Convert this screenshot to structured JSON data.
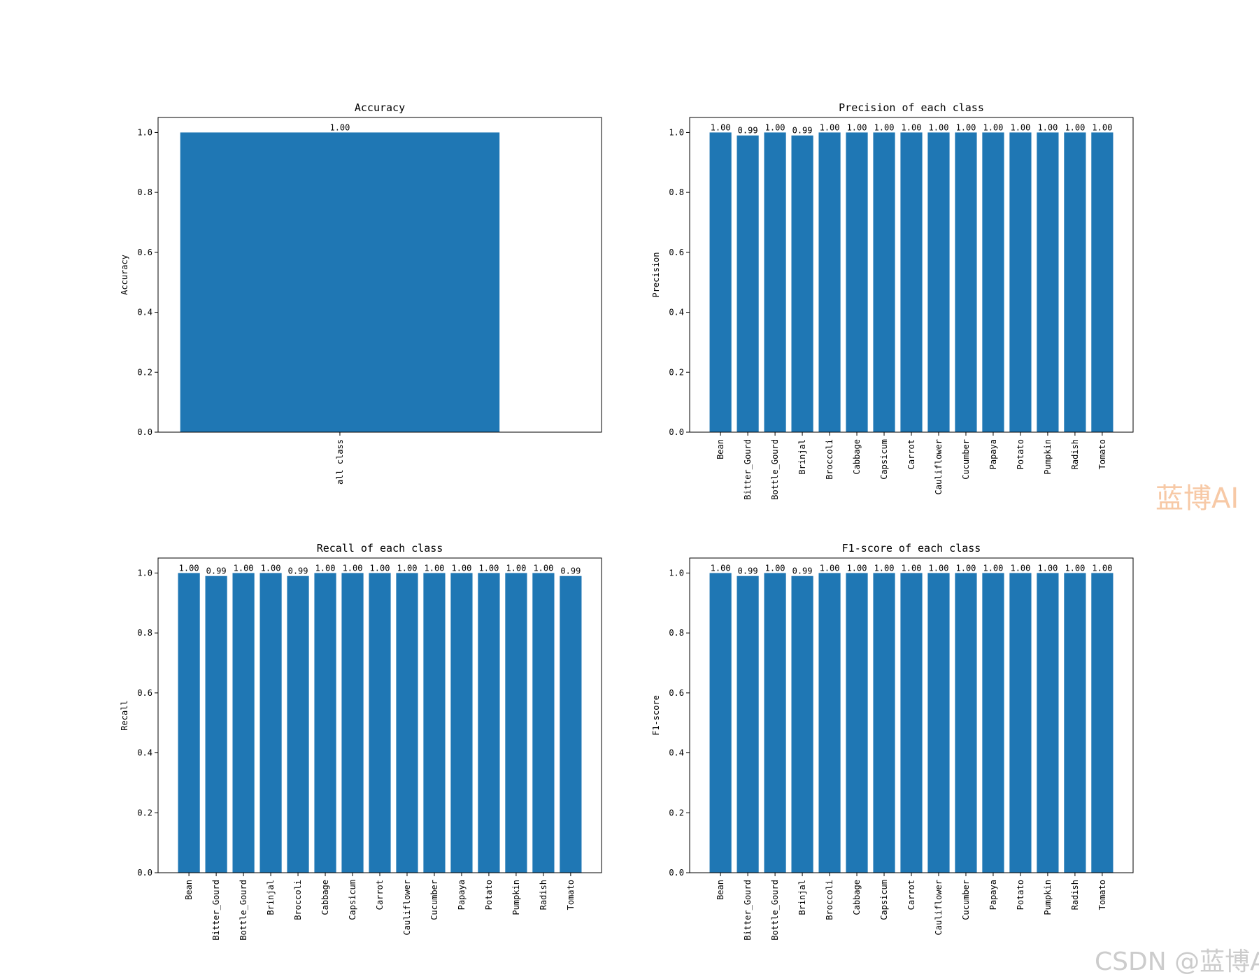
{
  "chart_data": [
    {
      "type": "bar",
      "title": "Accuracy",
      "xlabel": "",
      "ylabel": "Accuracy",
      "ylim": [
        0,
        1.05
      ],
      "yticks": [
        "0.0",
        "0.2",
        "0.4",
        "0.6",
        "0.8",
        "1.0"
      ],
      "categories": [
        "all class"
      ],
      "values": [
        1.0
      ],
      "data_labels": [
        "1.00"
      ],
      "color": "#1f77b4",
      "grid": false
    },
    {
      "type": "bar",
      "title": "Precision of each class",
      "xlabel": "",
      "ylabel": "Precision",
      "ylim": [
        0,
        1.05
      ],
      "yticks": [
        "0.0",
        "0.2",
        "0.4",
        "0.6",
        "0.8",
        "1.0"
      ],
      "categories": [
        "Bean",
        "Bitter_Gourd",
        "Bottle_Gourd",
        "Brinjal",
        "Broccoli",
        "Cabbage",
        "Capsicum",
        "Carrot",
        "Cauliflower",
        "Cucumber",
        "Papaya",
        "Potato",
        "Pumpkin",
        "Radish",
        "Tomato"
      ],
      "values": [
        1.0,
        0.99,
        1.0,
        0.99,
        1.0,
        1.0,
        1.0,
        1.0,
        1.0,
        1.0,
        1.0,
        1.0,
        1.0,
        1.0,
        1.0
      ],
      "data_labels": [
        "1.00",
        "0.99",
        "1.00",
        "0.99",
        "1.00",
        "1.00",
        "1.00",
        "1.00",
        "1.00",
        "1.00",
        "1.00",
        "1.00",
        "1.00",
        "1.00",
        "1.00"
      ],
      "color": "#1f77b4",
      "grid": false
    },
    {
      "type": "bar",
      "title": "Recall of each class",
      "xlabel": "",
      "ylabel": "Recall",
      "ylim": [
        0,
        1.05
      ],
      "yticks": [
        "0.0",
        "0.2",
        "0.4",
        "0.6",
        "0.8",
        "1.0"
      ],
      "categories": [
        "Bean",
        "Bitter_Gourd",
        "Bottle_Gourd",
        "Brinjal",
        "Broccoli",
        "Cabbage",
        "Capsicum",
        "Carrot",
        "Cauliflower",
        "Cucumber",
        "Papaya",
        "Potato",
        "Pumpkin",
        "Radish",
        "Tomato"
      ],
      "values": [
        1.0,
        0.99,
        1.0,
        1.0,
        0.99,
        1.0,
        1.0,
        1.0,
        1.0,
        1.0,
        1.0,
        1.0,
        1.0,
        1.0,
        0.99
      ],
      "data_labels": [
        "1.00",
        "0.99",
        "1.00",
        "1.00",
        "0.99",
        "1.00",
        "1.00",
        "1.00",
        "1.00",
        "1.00",
        "1.00",
        "1.00",
        "1.00",
        "1.00",
        "0.99"
      ],
      "color": "#1f77b4",
      "grid": false
    },
    {
      "type": "bar",
      "title": "F1-score of each class",
      "xlabel": "",
      "ylabel": "F1-score",
      "ylim": [
        0,
        1.05
      ],
      "yticks": [
        "0.0",
        "0.2",
        "0.4",
        "0.6",
        "0.8",
        "1.0"
      ],
      "categories": [
        "Bean",
        "Bitter_Gourd",
        "Bottle_Gourd",
        "Brinjal",
        "Broccoli",
        "Cabbage",
        "Capsicum",
        "Carrot",
        "Cauliflower",
        "Cucumber",
        "Papaya",
        "Potato",
        "Pumpkin",
        "Radish",
        "Tomato"
      ],
      "values": [
        1.0,
        0.99,
        1.0,
        0.99,
        1.0,
        1.0,
        1.0,
        1.0,
        1.0,
        1.0,
        1.0,
        1.0,
        1.0,
        1.0,
        1.0
      ],
      "data_labels": [
        "1.00",
        "0.99",
        "1.00",
        "0.99",
        "1.00",
        "1.00",
        "1.00",
        "1.00",
        "1.00",
        "1.00",
        "1.00",
        "1.00",
        "1.00",
        "1.00",
        "1.00"
      ],
      "color": "#1f77b4",
      "grid": false
    }
  ],
  "watermarks": {
    "orange": "蓝博AI",
    "csdn": "CSDN @蓝博AI"
  }
}
